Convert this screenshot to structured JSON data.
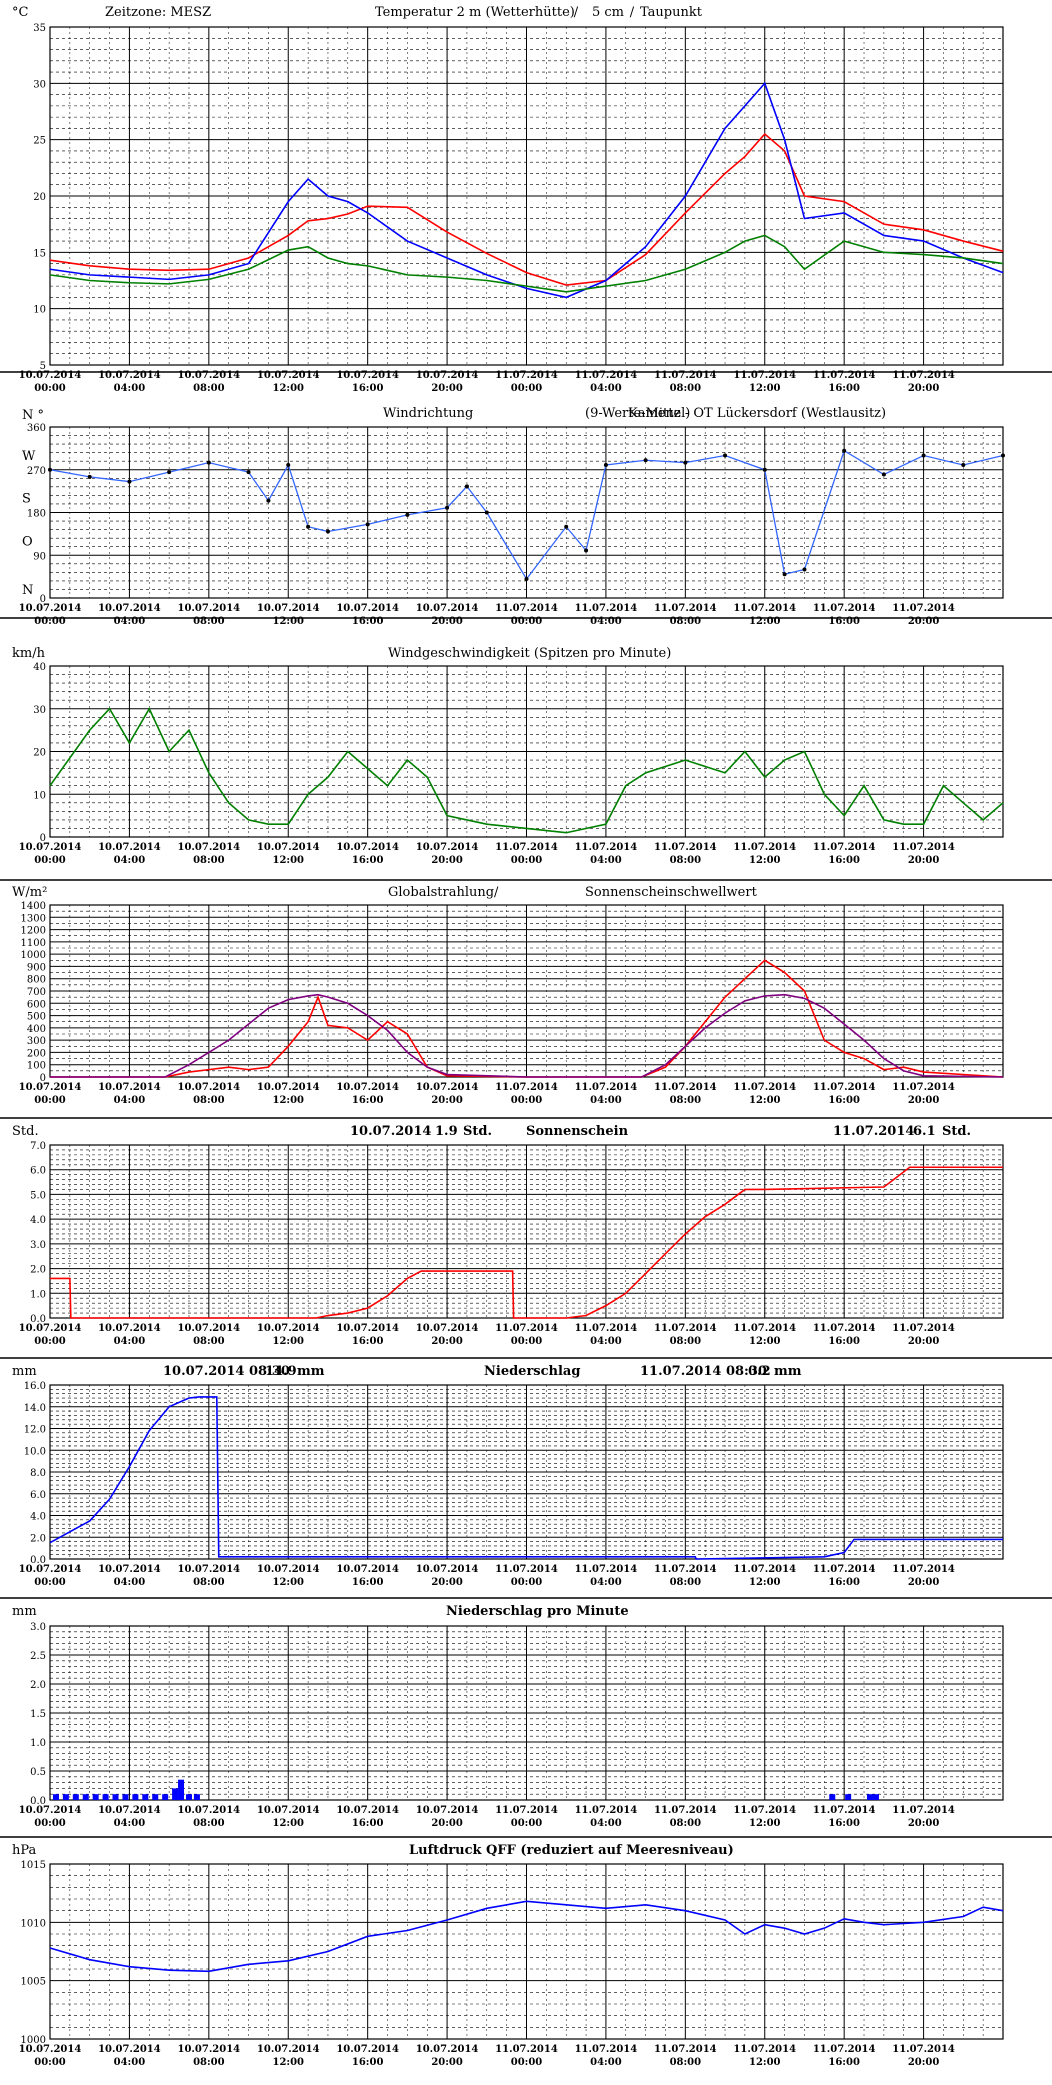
{
  "chart_data": [
    {
      "type": "line",
      "title_parts": [
        {
          "text": "Zeitzone: MESZ",
          "color": "#000000"
        },
        {
          "text": "Temperatur 2 m (Wetterhütte)",
          "color": "#ff0000"
        },
        {
          "text": "/",
          "color": "#000000"
        },
        {
          "text": "5 cm",
          "color": "#0000ff"
        },
        {
          "text": "/",
          "color": "#000000"
        },
        {
          "text": "Taupunkt",
          "color": "#008000"
        }
      ],
      "unit": "°C",
      "ylim": [
        5,
        35
      ],
      "yticks": [
        "5",
        "10",
        "15",
        "20",
        "25",
        "30",
        "35"
      ],
      "x": [
        0,
        2,
        4,
        6,
        8,
        10,
        12,
        13,
        14,
        15,
        16,
        18,
        20,
        22,
        24,
        26,
        28,
        30,
        32,
        34,
        35,
        36,
        37,
        38,
        40,
        42,
        44,
        46,
        48
      ],
      "series": [
        {
          "name": "Temperatur 2 m (Wetterhütte)",
          "color": "#ff0000",
          "values": [
            14.3,
            13.8,
            13.5,
            13.4,
            13.5,
            14.5,
            16.5,
            17.8,
            18.0,
            18.4,
            19.1,
            19.0,
            16.8,
            14.9,
            13.2,
            12.1,
            12.5,
            14.8,
            18.5,
            22.0,
            23.5,
            25.5,
            24.0,
            20.0,
            19.5,
            17.5,
            17.0,
            16.0,
            15.1
          ]
        },
        {
          "name": "5 cm",
          "color": "#0000ff",
          "values": [
            13.5,
            13.0,
            12.8,
            12.6,
            13.0,
            14.0,
            19.5,
            21.5,
            20.0,
            19.5,
            18.5,
            16.0,
            14.5,
            13.0,
            11.8,
            11.0,
            12.5,
            15.5,
            20.0,
            26.0,
            28.0,
            30.0,
            25.0,
            18.0,
            18.5,
            16.5,
            16.0,
            14.5,
            13.2
          ]
        },
        {
          "name": "Taupunkt",
          "color": "#008000",
          "values": [
            13.0,
            12.5,
            12.3,
            12.2,
            12.6,
            13.5,
            15.2,
            15.5,
            14.5,
            14.0,
            13.8,
            13.0,
            12.8,
            12.5,
            12.0,
            11.5,
            12.0,
            12.5,
            13.5,
            15.0,
            16.0,
            16.5,
            15.5,
            13.5,
            16.0,
            15.0,
            14.8,
            14.5,
            14.0
          ]
        }
      ]
    },
    {
      "type": "scatter",
      "title_parts": [
        {
          "text": "Windrichtung",
          "color": "#0000ff"
        },
        {
          "text": "(9-Werte-Mittel)",
          "color": "#000000"
        },
        {
          "text": "Kamenz - OT Lückersdorf (Westlausitz)",
          "color": "#000000"
        }
      ],
      "unit": "N °",
      "ylim": [
        0,
        360
      ],
      "yticks": [
        "0",
        "90",
        "180",
        "270",
        "360"
      ],
      "dir_labels": [
        "N",
        "O",
        "S",
        "W",
        "N °"
      ],
      "x": [
        0,
        2,
        4,
        6,
        8,
        10,
        11,
        12,
        13,
        14,
        16,
        18,
        20,
        21,
        22,
        24,
        26,
        27,
        28,
        30,
        32,
        34,
        36,
        37,
        38,
        40,
        42,
        44,
        46,
        48
      ],
      "series": [
        {
          "name": "Windrichtung (9-Werte-Mittel)",
          "color": "#000000",
          "values": [
            270,
            255,
            245,
            265,
            285,
            265,
            205,
            280,
            150,
            140,
            155,
            175,
            190,
            235,
            180,
            40,
            150,
            100,
            280,
            290,
            285,
            300,
            270,
            50,
            60,
            310,
            260,
            300,
            280,
            300
          ]
        }
      ]
    },
    {
      "type": "line",
      "title_parts": [
        {
          "text": "Windgeschwindigkeit (Spitzen pro Minute)",
          "color": "#000000"
        }
      ],
      "unit": "km/h",
      "ylim": [
        0,
        40
      ],
      "yticks": [
        "0",
        "10",
        "20",
        "30",
        "40"
      ],
      "x": [
        0,
        2,
        3,
        4,
        5,
        6,
        7,
        8,
        9,
        10,
        11,
        12,
        13,
        14,
        15,
        16,
        17,
        18,
        19,
        20,
        22,
        24,
        26,
        28,
        29,
        30,
        32,
        34,
        35,
        36,
        37,
        38,
        39,
        40,
        41,
        42,
        43,
        44,
        45,
        46,
        47,
        48
      ],
      "series": [
        {
          "name": "Windgeschwindigkeit",
          "color": "#008000",
          "values": [
            12,
            25,
            30,
            22,
            30,
            20,
            25,
            15,
            8,
            4,
            3,
            3,
            10,
            14,
            20,
            16,
            12,
            18,
            14,
            5,
            3,
            2,
            1,
            3,
            12,
            15,
            18,
            15,
            20,
            14,
            18,
            20,
            10,
            5,
            12,
            4,
            3,
            3,
            12,
            8,
            4,
            8
          ]
        }
      ]
    },
    {
      "type": "line",
      "title_parts": [
        {
          "text": "Globalstrahlung/",
          "color": "#000000"
        },
        {
          "text": "Sonnenscheinschwellwert",
          "color": "#800080"
        }
      ],
      "unit": "W/m²",
      "ylim": [
        0,
        1400
      ],
      "yticks": [
        "0",
        "100",
        "200",
        "300",
        "400",
        "500",
        "600",
        "700",
        "800",
        "900",
        "1000",
        "1100",
        "1200",
        "1300",
        "1400"
      ],
      "x": [
        0,
        5.8,
        7,
        8,
        9,
        10,
        11,
        12,
        13,
        13.5,
        14,
        15,
        16,
        17,
        18,
        19,
        20,
        24,
        29.8,
        31,
        32,
        33,
        34,
        35,
        36,
        37,
        38,
        39,
        40,
        41,
        42,
        43,
        44,
        48
      ],
      "series": [
        {
          "name": "Globalstrahlung",
          "color": "#ff0000",
          "values": [
            0,
            0,
            40,
            60,
            80,
            60,
            80,
            250,
            450,
            650,
            420,
            400,
            300,
            450,
            350,
            80,
            10,
            0,
            0,
            80,
            250,
            450,
            650,
            800,
            950,
            850,
            700,
            300,
            200,
            150,
            60,
            80,
            40,
            0
          ]
        },
        {
          "name": "Sonnenscheinschwellwert",
          "color": "#800080",
          "values": [
            0,
            0,
            100,
            200,
            300,
            430,
            560,
            630,
            660,
            670,
            650,
            600,
            500,
            380,
            200,
            80,
            20,
            0,
            0,
            100,
            250,
            400,
            520,
            620,
            660,
            670,
            640,
            560,
            430,
            300,
            150,
            50,
            10,
            0
          ]
        }
      ]
    },
    {
      "type": "line",
      "title_parts": [
        {
          "text": "10.07.2014",
          "color": "#000000"
        },
        {
          "text": "1.9",
          "color": "#000000"
        },
        {
          "text": "Std.",
          "color": "#000000"
        },
        {
          "text": "Sonnenschein",
          "color": "#000000"
        },
        {
          "text": "11.07.2014",
          "color": "#000000"
        },
        {
          "text": "6.1",
          "color": "#000000"
        },
        {
          "text": "Std.",
          "color": "#000000"
        }
      ],
      "unit": "Std.",
      "ylim": [
        0,
        7
      ],
      "yticks": [
        "0.0",
        "1.0",
        "2.0",
        "3.0",
        "4.0",
        "5.0",
        "6.0",
        "7.0"
      ],
      "x": [
        0,
        1.0,
        1.05,
        12,
        13.4,
        14,
        15,
        16,
        17,
        18,
        18.7,
        23.3,
        23.35,
        26,
        27,
        28,
        29,
        30,
        31,
        32,
        33,
        34,
        35,
        36,
        42,
        43.3,
        48
      ],
      "series": [
        {
          "name": "Sonnenschein",
          "color": "#ff0000",
          "values": [
            1.6,
            1.6,
            0,
            0,
            0,
            0.1,
            0.2,
            0.4,
            0.9,
            1.6,
            1.9,
            1.9,
            0,
            0,
            0.1,
            0.5,
            1.0,
            1.8,
            2.6,
            3.4,
            4.1,
            4.6,
            5.2,
            5.2,
            5.3,
            6.1,
            6.1
          ]
        }
      ]
    },
    {
      "type": "line",
      "title_parts": [
        {
          "text": "10.07.2014 08:30",
          "color": "#000000"
        },
        {
          "text": "14.9",
          "color": "#000000"
        },
        {
          "text": "mm",
          "color": "#000000"
        },
        {
          "text": "Niederschlag",
          "color": "#000000"
        },
        {
          "text": "11.07.2014 08:30",
          "color": "#000000"
        },
        {
          "text": "0.2",
          "color": "#000000"
        },
        {
          "text": "mm",
          "color": "#000000"
        }
      ],
      "unit": "mm",
      "ylim": [
        0,
        16
      ],
      "yticks": [
        "0.0",
        "2.0",
        "4.0",
        "6.0",
        "8.0",
        "10.0",
        "12.0",
        "14.0",
        "16.0"
      ],
      "x": [
        0,
        1,
        2,
        3,
        4,
        5,
        6,
        7,
        7.5,
        8,
        8.4,
        8.5,
        32.5,
        32.55,
        39,
        40,
        40.5,
        48
      ],
      "series": [
        {
          "name": "Niederschlag",
          "color": "#0000ff",
          "values": [
            1.5,
            2.5,
            3.5,
            5.5,
            8.5,
            11.8,
            14.0,
            14.8,
            14.9,
            14.9,
            14.9,
            0.2,
            0.2,
            0.0,
            0.2,
            0.6,
            1.8,
            1.8
          ]
        }
      ]
    },
    {
      "type": "bar",
      "title_parts": [
        {
          "text": "Niederschlag pro Minute",
          "color": "#000000"
        }
      ],
      "unit": "mm",
      "ylim": [
        0,
        3.0
      ],
      "yticks": [
        "0.0",
        "0.5",
        "1.0",
        "1.5",
        "2.0",
        "2.5",
        "3.0"
      ],
      "x": [
        0.3,
        0.8,
        1.3,
        1.8,
        2.3,
        2.8,
        3.3,
        3.8,
        4.3,
        4.8,
        5.3,
        5.8,
        6.3,
        6.6,
        7.0,
        7.4,
        39.4,
        40.2,
        41.3,
        41.6
      ],
      "series": [
        {
          "name": "Niederschlag pro Minute",
          "color": "#0000ff",
          "values": [
            0.1,
            0.1,
            0.1,
            0.1,
            0.1,
            0.1,
            0.1,
            0.1,
            0.1,
            0.1,
            0.1,
            0.1,
            0.2,
            0.35,
            0.1,
            0.1,
            0.1,
            0.1,
            0.1,
            0.1
          ]
        }
      ]
    },
    {
      "type": "line",
      "title_parts": [
        {
          "text": "Luftdruck QFF (reduziert auf Meeresniveau)",
          "color": "#000000"
        }
      ],
      "unit": "hPa",
      "ylim": [
        1000,
        1015
      ],
      "yticks": [
        "1000",
        "1005",
        "1010",
        "1015"
      ],
      "x": [
        0,
        2,
        4,
        6,
        8,
        10,
        12,
        14,
        16,
        18,
        20,
        22,
        24,
        26,
        28,
        30,
        32,
        34,
        35,
        36,
        37,
        38,
        39,
        40,
        41,
        42,
        44,
        46,
        47,
        48
      ],
      "series": [
        {
          "name": "Luftdruck QFF",
          "color": "#0000ff",
          "values": [
            1007.8,
            1006.8,
            1006.2,
            1005.9,
            1005.8,
            1006.4,
            1006.7,
            1007.5,
            1008.8,
            1009.3,
            1010.2,
            1011.2,
            1011.8,
            1011.5,
            1011.2,
            1011.5,
            1011.0,
            1010.2,
            1009.0,
            1009.8,
            1009.5,
            1009.0,
            1009.5,
            1010.3,
            1010.0,
            1009.8,
            1010.0,
            1010.5,
            1011.3,
            1011.0
          ]
        }
      ]
    }
  ],
  "x_axis": {
    "date_labels": [
      "10.07.2014",
      "10.07.2014",
      "10.07.2014",
      "10.07.2014",
      "10.07.2014",
      "10.07.2014",
      "11.07.2014",
      "11.07.2014",
      "11.07.2014",
      "11.07.2014",
      "11.07.2014",
      "11.07.2014"
    ],
    "time_labels": [
      "00:00",
      "04:00",
      "08:00",
      "12:00",
      "16:00",
      "20:00",
      "00:00",
      "04:00",
      "08:00",
      "12:00",
      "16:00",
      "20:00"
    ],
    "range_hours": [
      0,
      48
    ]
  }
}
